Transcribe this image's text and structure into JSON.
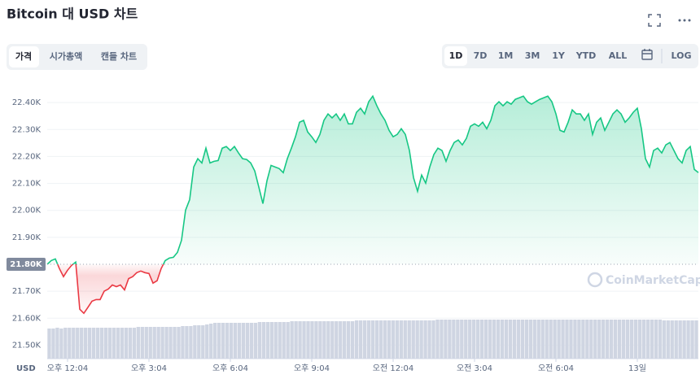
{
  "header": {
    "title": "Bitcoin 대 USD 차트",
    "tabs": [
      "가격",
      "시가총액",
      "캔들 차트"
    ],
    "ranges": [
      "1D",
      "7D",
      "1M",
      "3M",
      "1Y",
      "YTD",
      "ALL"
    ],
    "log": "LOG"
  },
  "chart_data": {
    "type": "line",
    "axis_label": "USD",
    "watermark": "CoinMarketCap",
    "up_color": "#16c784",
    "down_color": "#ea3943",
    "volume_color": "#cfd5e2",
    "baseline": {
      "value": 21800,
      "label": "21.80K"
    },
    "xlim": [
      0,
      160
    ],
    "ylim": [
      21450,
      22500
    ],
    "y2lim": [
      0,
      100
    ],
    "grid": true,
    "xticks": [
      {
        "value": 5,
        "label": "오후 12:04"
      },
      {
        "value": 25,
        "label": "오후 3:04"
      },
      {
        "value": 45,
        "label": "오후 6:04"
      },
      {
        "value": 65,
        "label": "오후 9:04"
      },
      {
        "value": 85,
        "label": "오전 12:04"
      },
      {
        "value": 105,
        "label": "오전 3:04"
      },
      {
        "value": 125,
        "label": "오전 6:04"
      },
      {
        "value": 145,
        "label": "13일"
      }
    ],
    "yticks": [
      {
        "value": 21500,
        "label": "21.50K"
      },
      {
        "value": 21600,
        "label": "21.60K"
      },
      {
        "value": 21700,
        "label": "21.70K"
      },
      {
        "value": 21900,
        "label": "21.90K"
      },
      {
        "value": 22000,
        "label": "22.00K"
      },
      {
        "value": 22100,
        "label": "22.10K"
      },
      {
        "value": 22200,
        "label": "22.20K"
      },
      {
        "value": 22300,
        "label": "22.30K"
      },
      {
        "value": 22400,
        "label": "22.40K"
      }
    ],
    "series": [
      {
        "name": "Price",
        "values": [
          21800,
          21814,
          21820,
          21784,
          21754,
          21778,
          21796,
          21808,
          21633,
          21618,
          21640,
          21663,
          21669,
          21669,
          21700,
          21708,
          21723,
          21717,
          21723,
          21705,
          21747,
          21754,
          21769,
          21775,
          21769,
          21766,
          21730,
          21739,
          21784,
          21814,
          21823,
          21826,
          21844,
          21889,
          22001,
          22040,
          22161,
          22192,
          22176,
          22231,
          22176,
          22182,
          22185,
          22231,
          22237,
          22222,
          22237,
          22213,
          22192,
          22189,
          22176,
          22146,
          22086,
          22025,
          22110,
          22167,
          22161,
          22155,
          22140,
          22192,
          22231,
          22273,
          22327,
          22334,
          22291,
          22273,
          22252,
          22282,
          22334,
          22358,
          22343,
          22358,
          22334,
          22358,
          22321,
          22321,
          22364,
          22379,
          22358,
          22403,
          22424,
          22388,
          22358,
          22334,
          22297,
          22273,
          22282,
          22303,
          22282,
          22222,
          22122,
          22071,
          22131,
          22101,
          22161,
          22207,
          22231,
          22222,
          22182,
          22222,
          22252,
          22261,
          22243,
          22267,
          22312,
          22321,
          22312,
          22327,
          22303,
          22334,
          22388,
          22403,
          22388,
          22403,
          22394,
          22412,
          22418,
          22424,
          22403,
          22394,
          22403,
          22412,
          22418,
          22424,
          22403,
          22358,
          22297,
          22291,
          22327,
          22373,
          22358,
          22358,
          22334,
          22358,
          22282,
          22327,
          22343,
          22297,
          22327,
          22358,
          22373,
          22358,
          22327,
          22343,
          22364,
          22379,
          22303,
          22192,
          22161,
          22222,
          22231,
          22213,
          22243,
          22252,
          22222,
          22192,
          22176,
          22222,
          22237,
          22152,
          22140
        ]
      },
      {
        "name": "Volume",
        "axis": "y2",
        "values": [
          37,
          37,
          38,
          37,
          38,
          38,
          38,
          38,
          38,
          38,
          38,
          38,
          38,
          38,
          38,
          38,
          38,
          38,
          38,
          38,
          38,
          38,
          39,
          39,
          39,
          39,
          39,
          39,
          39,
          39,
          39,
          39,
          39,
          40,
          40,
          40,
          41,
          41,
          41,
          42,
          43,
          44,
          44,
          44,
          44,
          44,
          44,
          44,
          44,
          44,
          44,
          44,
          45,
          45,
          45,
          45,
          45,
          45,
          45,
          45,
          46,
          46,
          46,
          46,
          46,
          46,
          46,
          46,
          46,
          46,
          46,
          46,
          46,
          46,
          46,
          46,
          47,
          47,
          47,
          47,
          47,
          47,
          47,
          47,
          47,
          47,
          47,
          47,
          47,
          47,
          47,
          47,
          47,
          47,
          47,
          47,
          48,
          48,
          48,
          48,
          48,
          48,
          48,
          48,
          48,
          48,
          48,
          48,
          48,
          48,
          48,
          48,
          48,
          48,
          48,
          48,
          48,
          48,
          48,
          48,
          48,
          48,
          48,
          48,
          48,
          48,
          48,
          48,
          48,
          48,
          48,
          48,
          48,
          48,
          48,
          48,
          48,
          48,
          48,
          48,
          48,
          48,
          48,
          48,
          48,
          48,
          48,
          48,
          48,
          48,
          48,
          48,
          47,
          47,
          47,
          47,
          47,
          47,
          47,
          47,
          47
        ]
      }
    ]
  }
}
